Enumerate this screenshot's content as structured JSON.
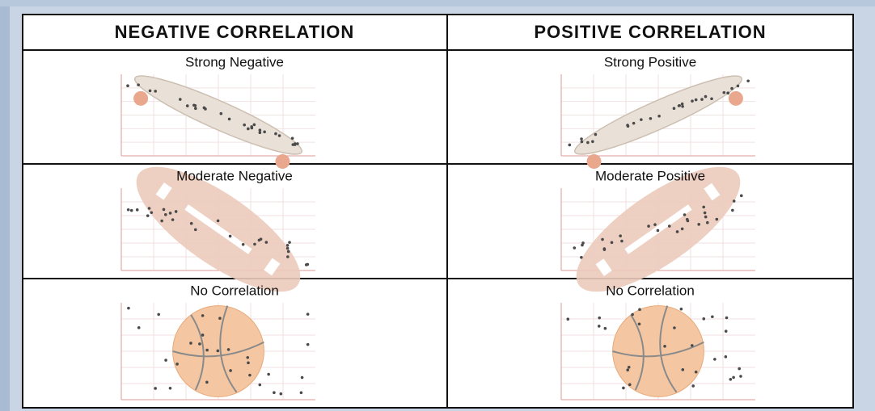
{
  "table": {
    "header": [
      "NEGATIVE CORRELATION",
      "POSITIVE CORRELATION"
    ],
    "rows": [
      [
        "Strong Negative",
        "Strong Positive"
      ],
      [
        "Moderate Negative",
        "Moderate Positive"
      ],
      [
        "No Correlation",
        "No Correlation"
      ]
    ]
  }
}
